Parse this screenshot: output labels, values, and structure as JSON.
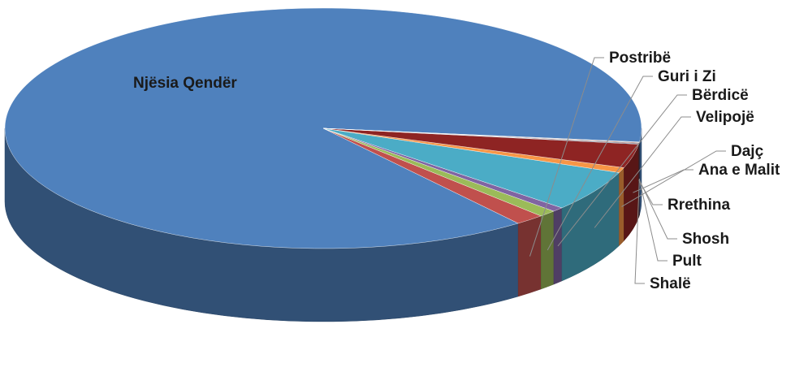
{
  "chart_data": {
    "type": "pie",
    "title": "",
    "style": "3d",
    "legend": "none",
    "slices": [
      {
        "label": "Njësia Qendër",
        "value": 87.3,
        "color": "#4f81bd"
      },
      {
        "label": "Postribë",
        "value": 1.5,
        "color": "#c0504d"
      },
      {
        "label": "Guri i Zi",
        "value": 0.9,
        "color": "#9bbb59"
      },
      {
        "label": "Bërdicë",
        "value": 0.6,
        "color": "#8064a2"
      },
      {
        "label": "Velipojë",
        "value": 5.5,
        "color": "#4bacc6"
      },
      {
        "label": "Dajç",
        "value": 0.7,
        "color": "#f79646"
      },
      {
        "label": "Ana e Malit",
        "value": 3.2,
        "color": "#8e2423"
      },
      {
        "label": "Rrethina",
        "value": 0.1,
        "color": "#2c4d75"
      },
      {
        "label": "Shosh",
        "value": 0.1,
        "color": "#772c2a"
      },
      {
        "label": "Pult",
        "value": 0.05,
        "color": "#5f7530"
      },
      {
        "label": "Shalë",
        "value": 0.05,
        "color": "#4d3b62"
      }
    ]
  }
}
